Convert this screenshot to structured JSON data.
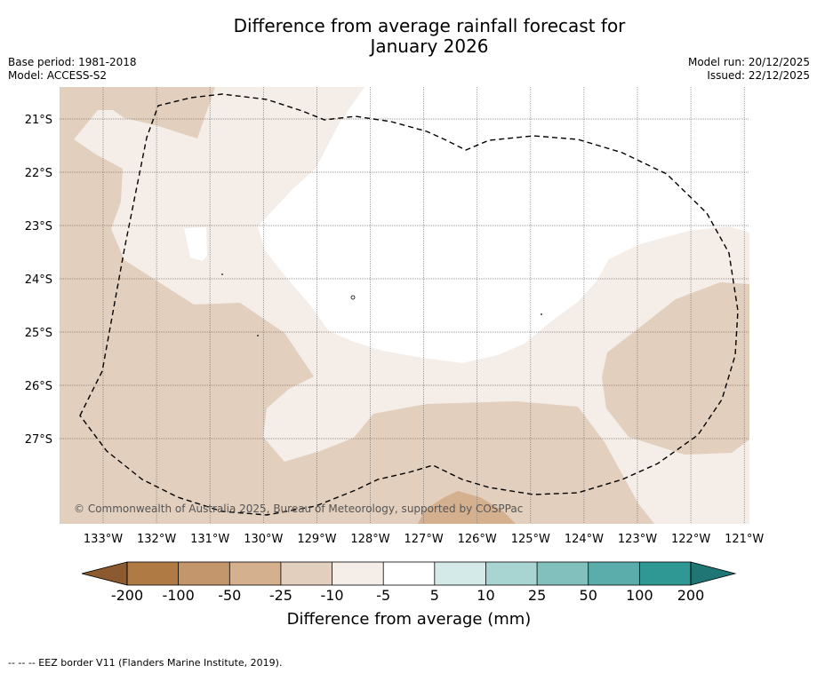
{
  "title": {
    "line1": "Difference from average rainfall forecast for",
    "line2": "January 2026"
  },
  "meta": {
    "base_period": "Base period: 1981-2018",
    "model": "Model: ACCESS-S2",
    "model_run": "Model run: 20/12/2025",
    "issued": "Issued: 22/12/2025"
  },
  "map": {
    "lat_labels": [
      "21°S",
      "22°S",
      "23°S",
      "24°S",
      "25°S",
      "26°S",
      "27°S"
    ],
    "lon_labels": [
      "133°W",
      "132°W",
      "131°W",
      "130°W",
      "129°W",
      "128°W",
      "127°W",
      "126°W",
      "125°W",
      "124°W",
      "123°W",
      "122°W",
      "121°W"
    ],
    "copyright": "© Commonwealth of Australia 2025, Bureau of Meteorology, supported by COSPPac"
  },
  "colorbar": {
    "colors": [
      "#8c5a2e",
      "#b07a45",
      "#c4966b",
      "#d5b08f",
      "#e3cfbd",
      "#f4ede8",
      "#ffffff",
      "#d4eae8",
      "#a8d5d2",
      "#82c0bd",
      "#5aadab",
      "#2f9894",
      "#1f7674"
    ],
    "ticks": [
      "-200",
      "-100",
      "-50",
      "-25",
      "-10",
      "-5",
      "5",
      "10",
      "25",
      "50",
      "100",
      "200"
    ],
    "label": "Difference from average (mm)"
  },
  "footnote": "--  --  -- EEZ border V11 (Flanders Marine Institute, 2019)."
}
